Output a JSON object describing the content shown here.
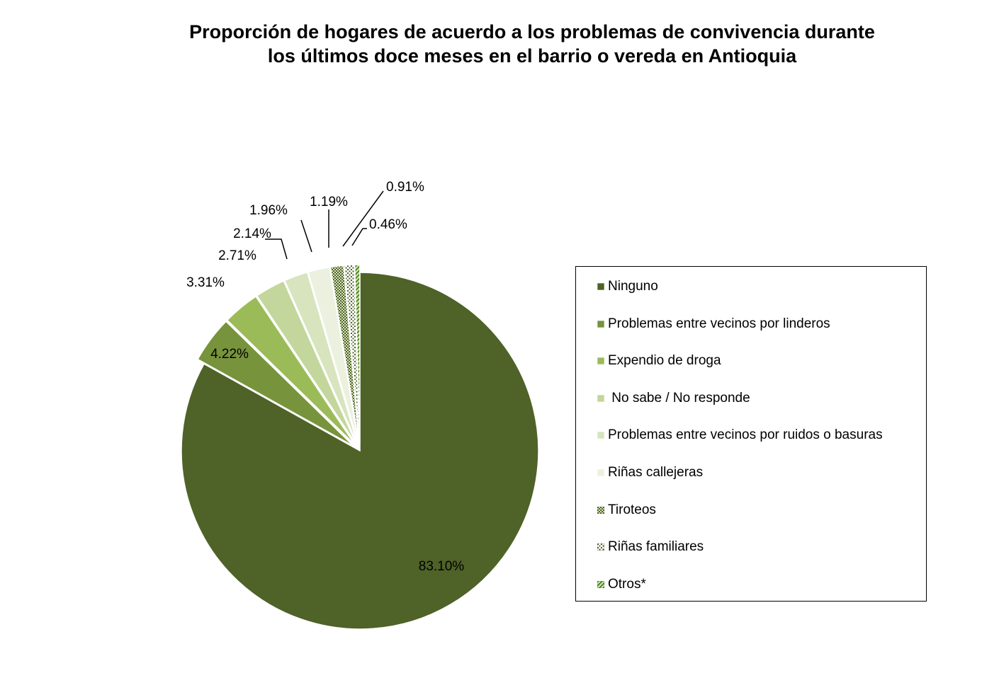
{
  "chart_data": {
    "type": "pie",
    "title_lines": [
      "Proporción de hogares de acuerdo a los problemas  de convivencia durante",
      "los últimos doce meses en el barrio o vereda en Antioquia"
    ],
    "slices": [
      {
        "name": "Ninguno",
        "value": 83.1,
        "label": "83.10%",
        "color": "#4f6228",
        "pattern": "solid",
        "exploded": false
      },
      {
        "name": "Problemas entre vecinos por linderos",
        "value": 4.22,
        "label": "4.22%",
        "color": "#77933c",
        "pattern": "solid",
        "exploded": true
      },
      {
        "name": "Expendio de droga",
        "value": 3.31,
        "label": "3.31%",
        "color": "#9bbb59",
        "pattern": "solid",
        "exploded": true
      },
      {
        "name": " No sabe / No responde",
        "value": 2.71,
        "label": "2.71%",
        "color": "#c3d69b",
        "pattern": "solid",
        "exploded": true
      },
      {
        "name": "Problemas entre vecinos por ruidos o basuras",
        "value": 2.14,
        "label": "2.14%",
        "color": "#d7e4bd",
        "pattern": "solid",
        "exploded": true
      },
      {
        "name": "Riñas callejeras",
        "value": 1.96,
        "label": "1.96%",
        "color": "#ebf1de",
        "pattern": "solid",
        "exploded": true
      },
      {
        "name": "Tiroteos",
        "value": 1.19,
        "label": "1.19%",
        "color": "#4f6228",
        "pattern": "checker",
        "exploded": true
      },
      {
        "name": "Riñas familiares",
        "value": 0.91,
        "label": "0.91%",
        "color": "#4f6228",
        "pattern": "dots",
        "exploded": true
      },
      {
        "name": "Otros*",
        "value": 0.46,
        "label": "0.46%",
        "color": "#76b82a",
        "pattern": "stripes",
        "exploded": true
      }
    ],
    "legend_position": "right"
  }
}
